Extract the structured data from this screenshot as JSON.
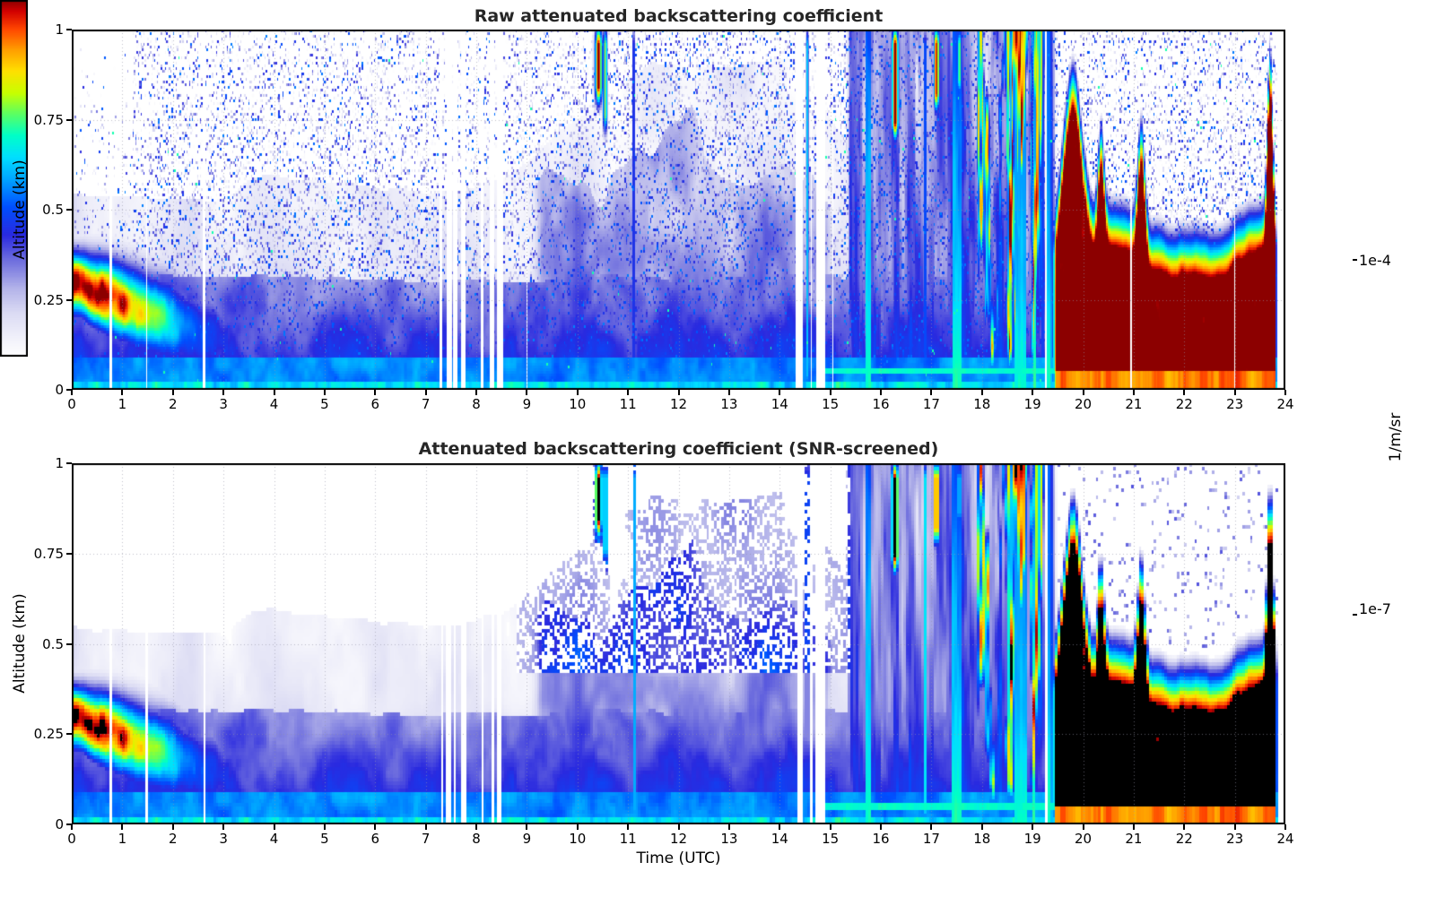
{
  "figure": {
    "colorbar": {
      "max_label": "1e-4",
      "min_label": "1e-7",
      "unit": "1/m/sr",
      "scale": "log"
    }
  },
  "chart_data": [
    {
      "type": "heatmap",
      "title": "Raw attenuated backscattering coefficient",
      "xlabel": "",
      "ylabel": "Altitude (km)",
      "xlim": [
        0,
        24
      ],
      "ylim": [
        0,
        1
      ],
      "xticks": [
        0,
        1,
        2,
        3,
        4,
        5,
        6,
        7,
        8,
        9,
        10,
        11,
        12,
        13,
        14,
        15,
        16,
        17,
        18,
        19,
        20,
        21,
        22,
        23,
        24
      ],
      "xtick_labels": [
        "0",
        "1",
        "2",
        "3",
        "4",
        "5",
        "6",
        "7",
        "8",
        "9",
        "10",
        "11",
        "12",
        "13",
        "14",
        "15",
        "16",
        "17",
        "18",
        "19",
        "20",
        "21",
        "22",
        "23",
        "24"
      ],
      "yticks": [
        0,
        0.25,
        0.5,
        0.75,
        1
      ],
      "ytick_labels": [
        "0",
        "0.25",
        "0.5",
        "0.75",
        "1"
      ],
      "grid": true,
      "screened": false,
      "value_scale": "log10",
      "vmin": 1e-07,
      "vmax": 0.0001,
      "colorbar": {
        "label": "1/m/sr",
        "vmin_label": "1e-7",
        "vmax_label": "1e-4"
      },
      "features": [
        "Random noise speckle at all altitudes (raw signal)",
        "Strong surface aerosol layer 0-2.5 UTC centered near 0.3 km with saturated red core",
        "Shallow boundary layer below ~0.3 km through the day",
        "Convective plumes ~9-15 UTC reaching 0.5-1 km",
        "Precipitation / cloud columns 15.3-19.5 UTC through full depth with bright streaks",
        "Intense low-level layer 19.5-24 UTC below ~0.5 km (red / dark red)",
        "Vertical white stripes are missing profiles near 0.8, 1.5, 7-8.5, 14.3-15 UTC"
      ]
    },
    {
      "type": "heatmap",
      "title": "Attenuated backscattering coefficient (SNR-screened)",
      "xlabel": "Time (UTC)",
      "ylabel": "Altitude (km)",
      "xlim": [
        0,
        24
      ],
      "ylim": [
        0,
        1
      ],
      "xticks": [
        0,
        1,
        2,
        3,
        4,
        5,
        6,
        7,
        8,
        9,
        10,
        11,
        12,
        13,
        14,
        15,
        16,
        17,
        18,
        19,
        20,
        21,
        22,
        23,
        24
      ],
      "xtick_labels": [
        "0",
        "1",
        "2",
        "3",
        "4",
        "5",
        "6",
        "7",
        "8",
        "9",
        "10",
        "11",
        "12",
        "13",
        "14",
        "15",
        "16",
        "17",
        "18",
        "19",
        "20",
        "21",
        "22",
        "23",
        "24"
      ],
      "yticks": [
        0,
        0.25,
        0.5,
        0.75,
        1
      ],
      "ytick_labels": [
        "0",
        "0.25",
        "0.5",
        "0.75",
        "1"
      ],
      "grid": true,
      "screened": true,
      "value_scale": "log10",
      "vmin": 1e-07,
      "vmax": 0.0001,
      "colorbar": {
        "label": "1/m/sr",
        "vmin_label": "1e-7",
        "vmax_label": "1e-4"
      },
      "features": [
        "Low-SNR noise removed (white background above boundary layer)",
        "Saturated returns rendered black (morning layer core, cloud bases, evening layer 20-24 UTC)",
        "Blocky screened field; speckled plume tops 9-15 UTC",
        "Same missing-profile white stripes as raw panel"
      ]
    }
  ],
  "colormap": [
    {
      "p": 0.0,
      "c": "#ffffff"
    },
    {
      "p": 0.05,
      "c": "#f2f2fb"
    },
    {
      "p": 0.12,
      "c": "#dcdcf4"
    },
    {
      "p": 0.19,
      "c": "#b4b4ea"
    },
    {
      "p": 0.27,
      "c": "#6e6ede"
    },
    {
      "p": 0.34,
      "c": "#2a2ae0"
    },
    {
      "p": 0.42,
      "c": "#0050ff"
    },
    {
      "p": 0.5,
      "c": "#00a8ff"
    },
    {
      "p": 0.56,
      "c": "#00e0ff"
    },
    {
      "p": 0.62,
      "c": "#00ffc8"
    },
    {
      "p": 0.68,
      "c": "#5aff64"
    },
    {
      "p": 0.74,
      "c": "#c8ff00"
    },
    {
      "p": 0.8,
      "c": "#ffe100"
    },
    {
      "p": 0.86,
      "c": "#ffa000"
    },
    {
      "p": 0.92,
      "c": "#ff4600"
    },
    {
      "p": 0.97,
      "c": "#d20000"
    },
    {
      "p": 1.0,
      "c": "#8c0000"
    }
  ],
  "scene": {
    "data_end": 23.85,
    "gaps": [
      [
        0.76,
        0.8
      ],
      [
        1.46,
        1.5
      ],
      [
        2.6,
        2.64
      ],
      [
        7.28,
        7.34
      ],
      [
        7.42,
        7.52
      ],
      [
        7.56,
        7.62
      ],
      [
        7.72,
        7.8
      ],
      [
        8.08,
        8.14
      ],
      [
        8.28,
        8.34
      ],
      [
        8.4,
        8.52
      ],
      [
        9.0,
        9.02
      ],
      [
        14.33,
        14.45
      ],
      [
        14.6,
        14.63
      ],
      [
        14.72,
        14.92
      ],
      [
        15.03,
        15.06
      ],
      [
        19.26,
        19.29
      ],
      [
        20.93,
        20.96
      ],
      [
        22.99,
        23.02
      ]
    ],
    "morning_layer": {
      "t_end": 3.1,
      "z_center0": 0.3,
      "descent": 0.058,
      "width0": 0.06,
      "amp_log10": -3.92
    },
    "plumes": {
      "t0": 8.5,
      "t1": 15.4
    },
    "rain": {
      "t0": 15.25,
      "t1": 19.55
    },
    "filaments": {
      "t0": 17.85,
      "t1": 19.4
    },
    "evening": {
      "t_start": 19.35,
      "base_top": 0.42,
      "bumps": [
        {
          "t": 19.8,
          "h": 0.45,
          "w": 0.18
        },
        {
          "t": 20.35,
          "h": 0.25,
          "w": 0.06
        },
        {
          "t": 21.15,
          "h": 0.3,
          "w": 0.07
        },
        {
          "t": 23.7,
          "h": 0.45,
          "w": 0.05
        }
      ],
      "core_max_log10": -3.82
    },
    "streaks": [
      {
        "t": 10.42,
        "w": 0.05,
        "zb": 0.8,
        "zt": 1.0,
        "amp": -3.95
      },
      {
        "t": 10.55,
        "w": 0.03,
        "zb": 0.72,
        "zt": 1.0,
        "amp": -4.7
      },
      {
        "t": 11.12,
        "w": 0.015,
        "zb": 0.0,
        "zt": 1.0,
        "amp": -5.4
      },
      {
        "t": 14.55,
        "w": 0.02,
        "zb": 0.0,
        "zt": 1.0,
        "amp": -5.4
      },
      {
        "t": 16.28,
        "w": 0.05,
        "zb": 0.7,
        "zt": 1.0,
        "amp": -3.95
      },
      {
        "t": 16.88,
        "w": 0.015,
        "zb": 0.0,
        "zt": 1.0,
        "amp": -5.2
      },
      {
        "t": 17.1,
        "w": 0.04,
        "zb": 0.78,
        "zt": 1.0,
        "amp": -4.0
      },
      {
        "t": 17.55,
        "w": 0.03,
        "zb": 0.82,
        "zt": 1.0,
        "amp": -4.9
      },
      {
        "t": 19.2,
        "w": 0.015,
        "zb": 0.0,
        "zt": 1.0,
        "amp": -5.3
      }
    ]
  }
}
